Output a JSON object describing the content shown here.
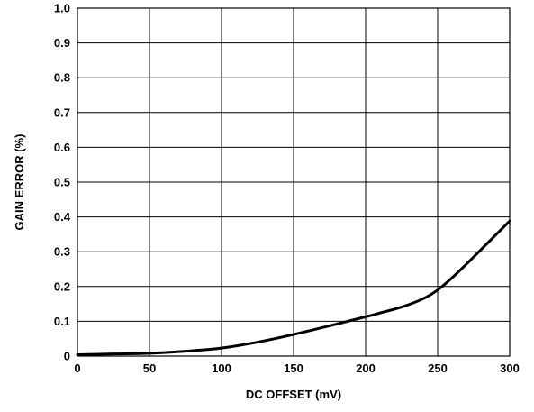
{
  "chart_data": {
    "type": "line",
    "title": "",
    "xlabel": "DC OFFSET (mV)",
    "ylabel": "GAIN ERROR (%)",
    "xlim": [
      0,
      300
    ],
    "ylim": [
      0,
      1.0
    ],
    "x_ticks": [
      "0",
      "50",
      "100",
      "150",
      "200",
      "250",
      "300"
    ],
    "y_ticks": [
      "0",
      "0.1",
      "0.2",
      "0.3",
      "0.4",
      "0.5",
      "0.6",
      "0.7",
      "0.8",
      "0.9",
      "1.0"
    ],
    "grid": true,
    "legend": "none",
    "series": [
      {
        "color": "#000000",
        "x": [
          0,
          25,
          50,
          75,
          100,
          125,
          150,
          175,
          200,
          210,
          225,
          240,
          250,
          260,
          275,
          290,
          300
        ],
        "y": [
          0.004,
          0.006,
          0.008,
          0.014,
          0.023,
          0.04,
          0.062,
          0.087,
          0.113,
          0.124,
          0.141,
          0.165,
          0.19,
          0.225,
          0.285,
          0.347,
          0.388
        ]
      }
    ]
  }
}
